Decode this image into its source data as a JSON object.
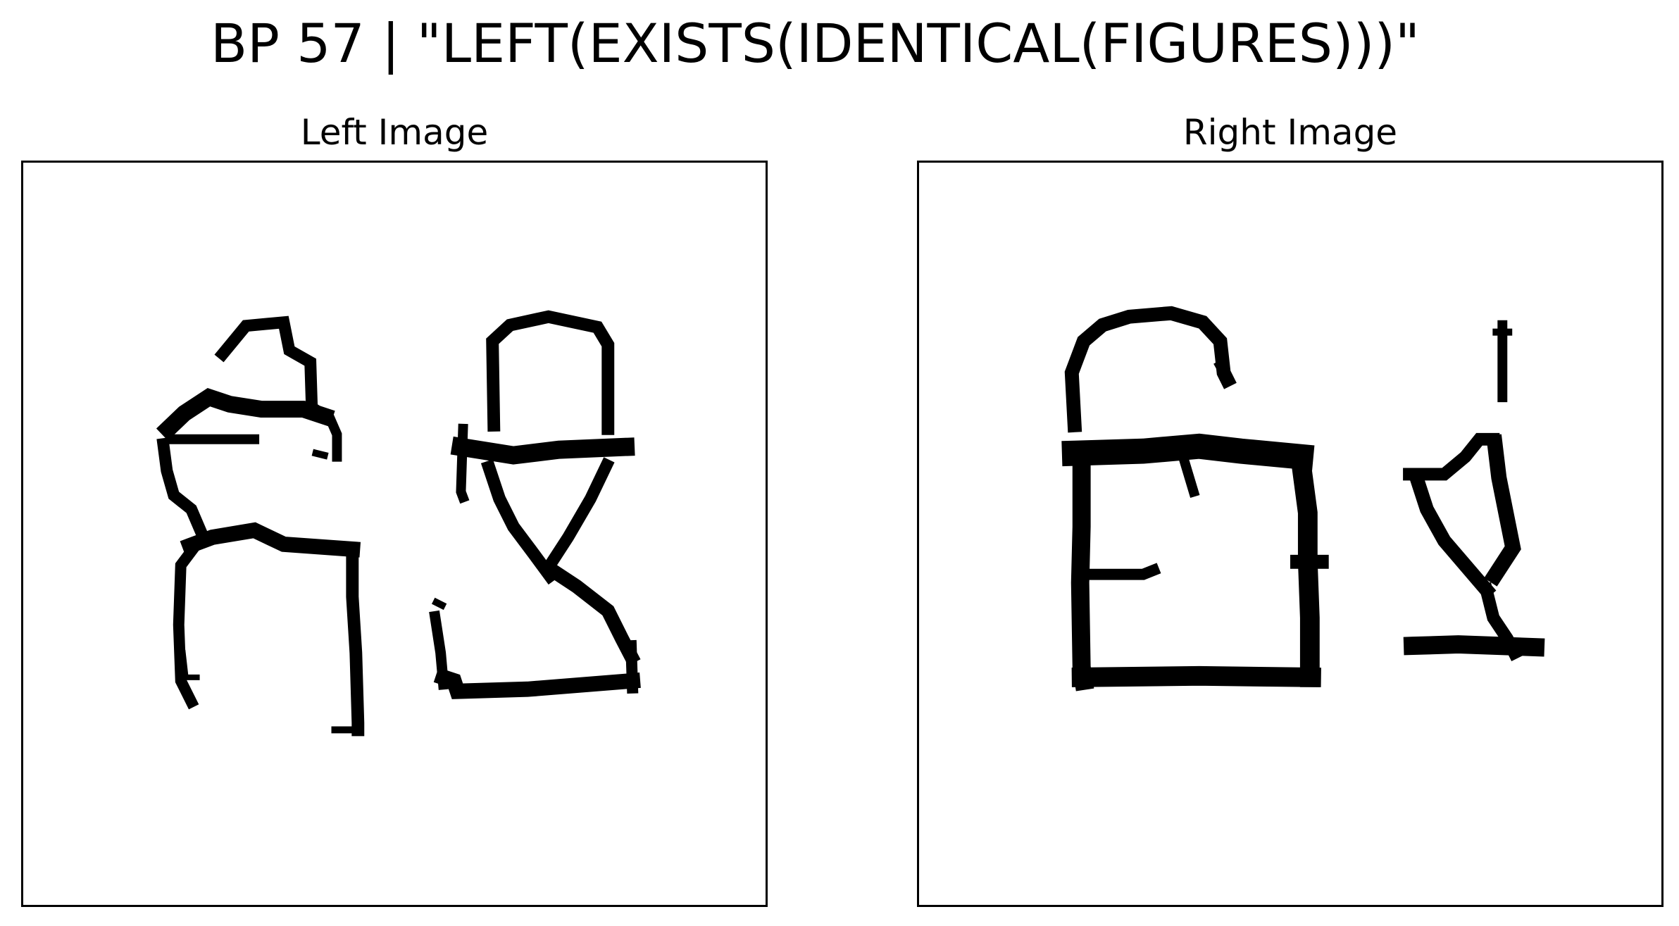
{
  "title": "BP 57 | \"LEFT(EXISTS(IDENTICAL(FIGURES)))\"",
  "panels": [
    {
      "title": "Left Image",
      "figures": [
        "handwritten-figure-hook-shape",
        "handwritten-figure-triangle-z-shape"
      ]
    },
    {
      "title": "Right Image",
      "figures": [
        "handwritten-figure-box-with-arc",
        "handwritten-figure-small-triangle-stand"
      ]
    }
  ],
  "colors": {
    "ink": "#000000",
    "background": "#ffffff",
    "frame": "#000000"
  }
}
